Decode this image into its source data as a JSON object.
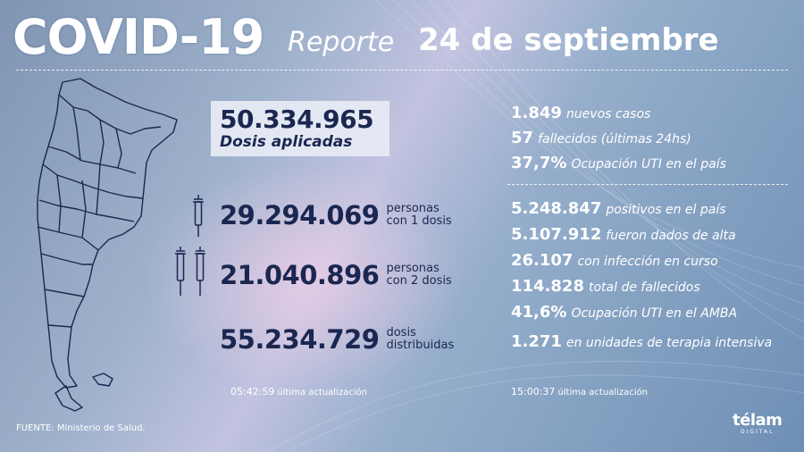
{
  "header": {
    "title": "COVID-19",
    "reporte_label": "Reporte",
    "date": "24 de septiembre"
  },
  "vacunas": {
    "dosis_aplicadas_value": "50.334.965",
    "dosis_aplicadas_label": "Dosis aplicadas",
    "rows": [
      {
        "value": "29.294.069",
        "label_1": "personas",
        "label_2": "con 1 dosis"
      },
      {
        "value": "21.040.896",
        "label_1": "personas",
        "label_2": "con 2 dosis"
      },
      {
        "value": "55.234.729",
        "label_1": "dosis",
        "label_2": "distribuidas"
      }
    ],
    "update_time": "05:42:59",
    "update_label": "última actualización"
  },
  "casos": {
    "stats": [
      {
        "value": "1.849",
        "label": "nuevos casos"
      },
      {
        "value": "57",
        "label": "fallecidos (últimas 24hs)"
      },
      {
        "value": "37,7%",
        "label": "Ocupación UTI en el país"
      },
      {
        "value": "5.248.847",
        "label": "positivos en el país"
      },
      {
        "value": "5.107.912",
        "label": "fueron dados de alta"
      },
      {
        "value": "26.107",
        "label": "con infección en curso"
      },
      {
        "value": "114.828",
        "label": "total de fallecidos"
      },
      {
        "value": "41,6%",
        "label": "Ocupación UTI en el AMBA"
      },
      {
        "value": "1.271",
        "label": "en unidades de terapia intensiva"
      }
    ],
    "update_time": "15:00:37",
    "update_label": "última actualización"
  },
  "footer": {
    "source": "FUENTE: Ministerio de Salud.",
    "logo_name": "télam",
    "logo_sub": "DIGITAL"
  },
  "colors": {
    "dark_navy": "#1b2750",
    "text_white": "#ffffff"
  },
  "icons": [
    "syringe-icon",
    "double-syringe-icon",
    "argentina-map",
    "telam-logo"
  ]
}
